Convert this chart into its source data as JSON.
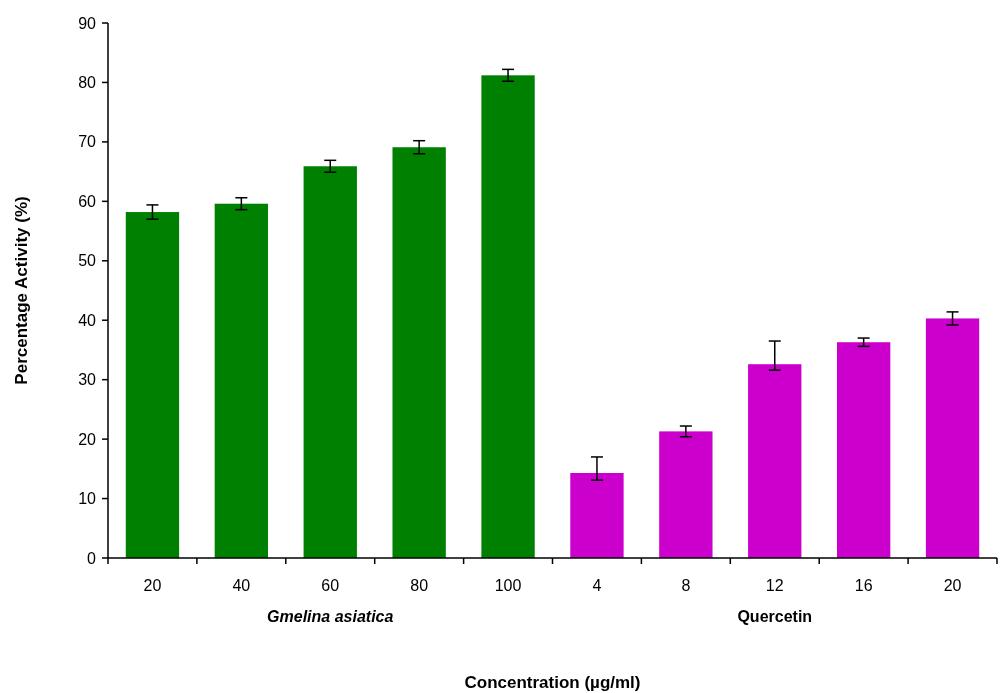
{
  "chart_data": {
    "type": "bar",
    "xlabel": "Concentration (µg/ml)",
    "ylabel": "Percentage Activity (%)",
    "categories": [
      "20",
      "40",
      "60",
      "80",
      "100",
      "4",
      "8",
      "12",
      "16",
      "20"
    ],
    "series": [
      {
        "color": "#008000",
        "values": [
          58.2,
          59.6,
          65.9,
          69.1,
          81.2,
          null,
          null,
          null,
          null,
          null
        ],
        "errors": [
          1.2,
          1.0,
          1.0,
          1.1,
          1.0,
          null,
          null,
          null,
          null,
          null
        ]
      },
      {
        "color": "#cc00cc",
        "values": [
          null,
          null,
          null,
          null,
          null,
          14.3,
          21.3,
          32.6,
          36.3,
          40.3
        ],
        "errors": [
          null,
          null,
          null,
          null,
          null,
          [
            13.1,
            17.0
          ],
          0.9,
          [
            31.6,
            36.5
          ],
          0.7,
          1.1
        ]
      }
    ],
    "ylim": [
      0,
      90
    ],
    "yticks": [
      0,
      10,
      20,
      30,
      40,
      50,
      60,
      70,
      80,
      90
    ],
    "grid": false,
    "annotations": [
      "Gmelina asiatica",
      "Quercetin"
    ]
  }
}
